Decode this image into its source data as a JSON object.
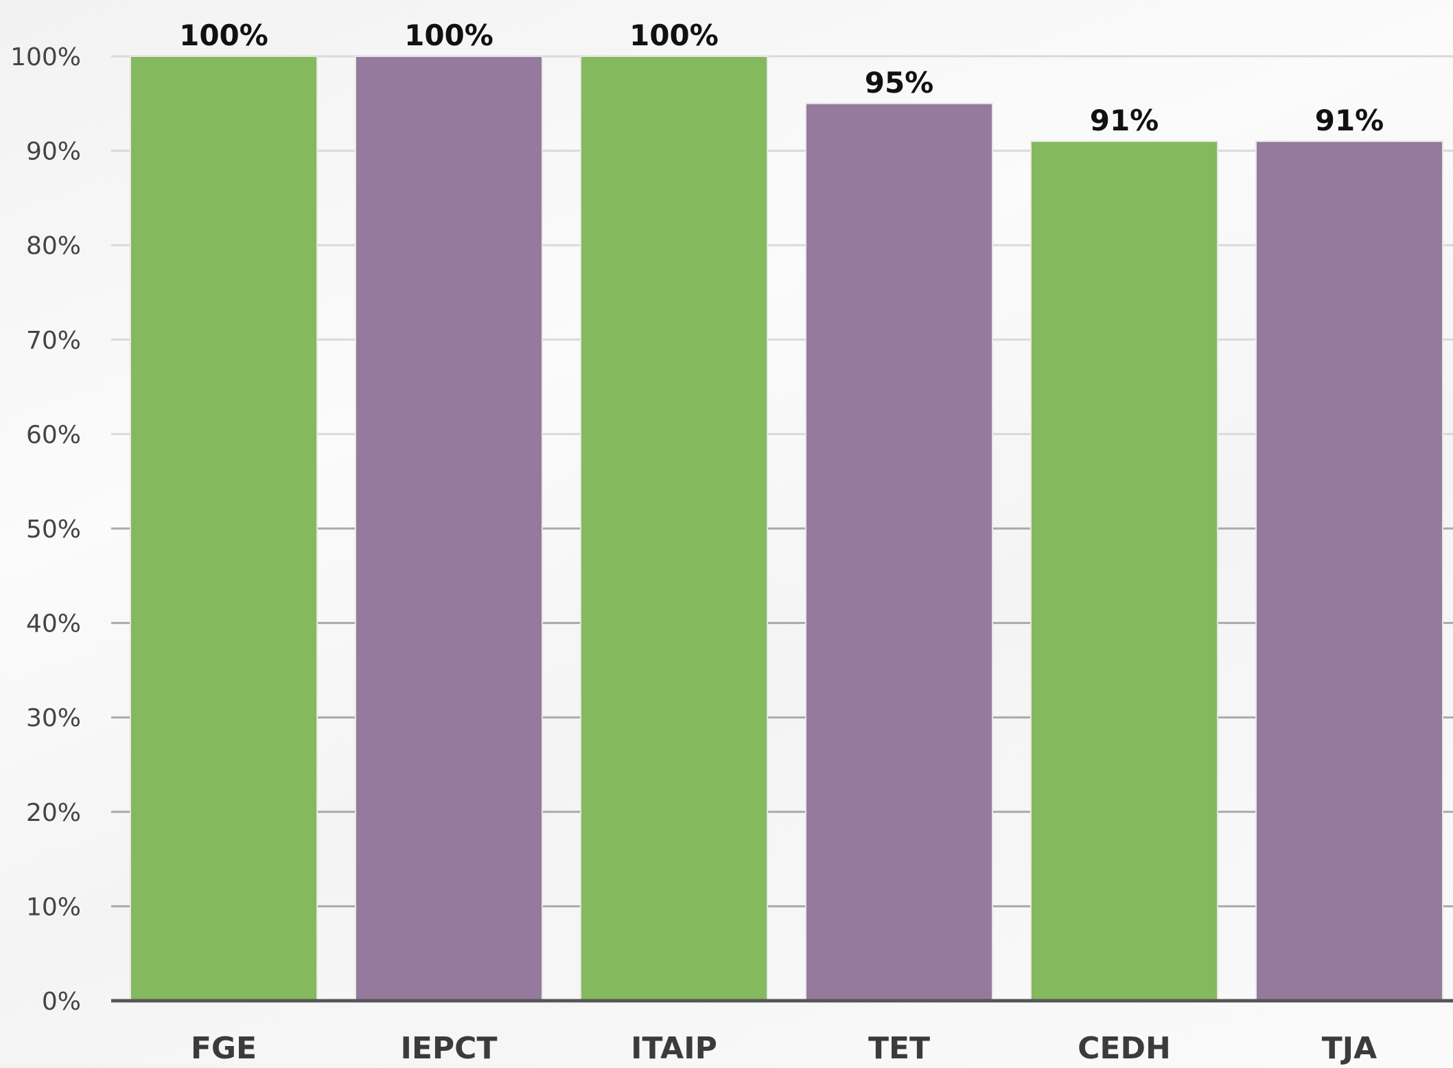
{
  "chart_data": {
    "type": "bar",
    "categories": [
      "FGE",
      "IEPCT",
      "ITAIP",
      "TET",
      "CEDH",
      "TJA"
    ],
    "values": [
      100,
      100,
      100,
      95,
      91,
      91
    ],
    "data_labels": [
      "100%",
      "100%",
      "100%",
      "95%",
      "91%",
      "91%"
    ],
    "bar_colors": [
      "#84b95d",
      "#957a9d",
      "#84b95d",
      "#957a9d",
      "#84b95d",
      "#957a9d"
    ],
    "title": "",
    "xlabel": "",
    "ylabel": "",
    "ylim": [
      0,
      100
    ],
    "yticks": [
      0,
      10,
      20,
      30,
      40,
      50,
      60,
      70,
      80,
      90,
      100
    ],
    "ytick_labels": [
      "0%",
      "10%",
      "20%",
      "30%",
      "40%",
      "50%",
      "60%",
      "70%",
      "80%",
      "90%",
      "100%"
    ],
    "grid": true,
    "legend": "none"
  }
}
